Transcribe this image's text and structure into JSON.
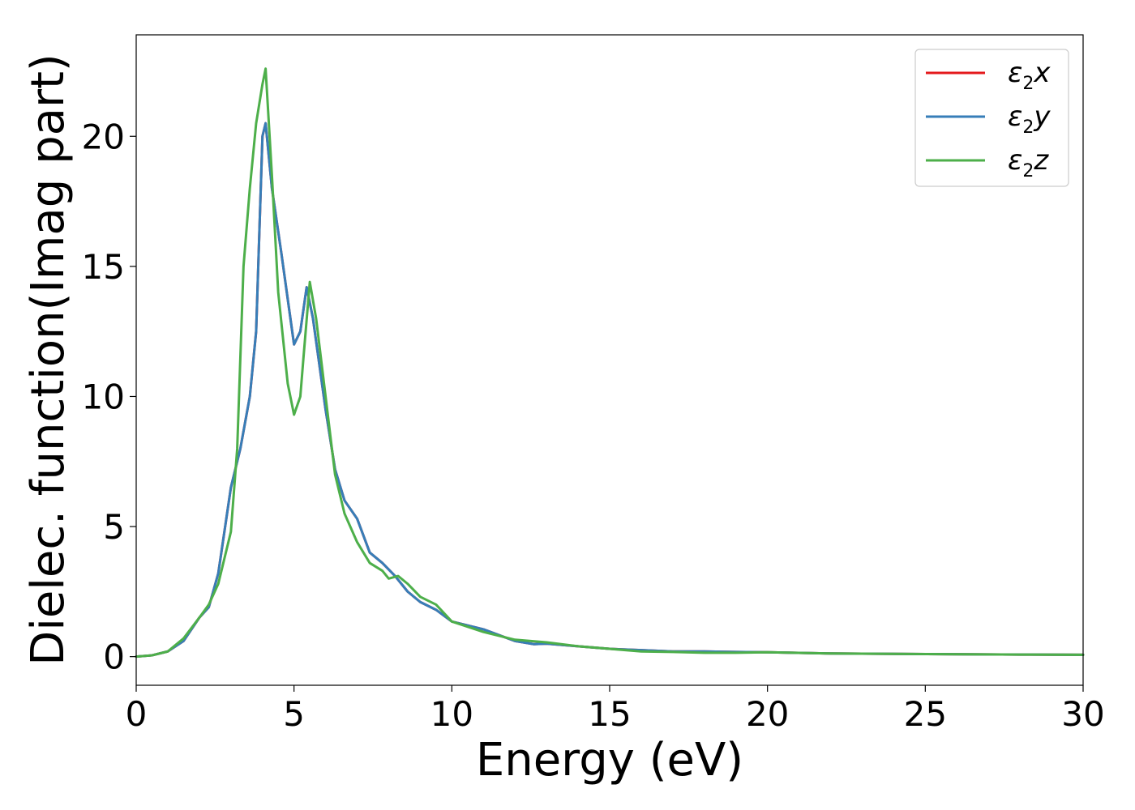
{
  "chart_data": {
    "type": "line",
    "xlabel": "Energy (eV)",
    "ylabel": "Dielec. function(Imag part)",
    "xlim": [
      0,
      30
    ],
    "ylim": [
      -1.1,
      23.9
    ],
    "xticks": [
      0,
      5,
      10,
      15,
      20,
      25,
      30
    ],
    "yticks": [
      0,
      5,
      10,
      15,
      20
    ],
    "xtick_labels": [
      "0",
      "5",
      "10",
      "15",
      "20",
      "25",
      "30"
    ],
    "ytick_labels": [
      "0",
      "5",
      "10",
      "15",
      "20"
    ],
    "grid": false,
    "legend_position": "top-right",
    "series": [
      {
        "name": "x",
        "legend_main": "ε",
        "legend_sub": "2",
        "legend_suffix": "x",
        "color": "#e41a1c",
        "points": [
          [
            0,
            0
          ],
          [
            0.5,
            0.05
          ],
          [
            1,
            0.2
          ],
          [
            1.5,
            0.6
          ],
          [
            2,
            1.5
          ],
          [
            2.3,
            1.9
          ],
          [
            2.6,
            3.2
          ],
          [
            3,
            6.5
          ],
          [
            3.3,
            8.0
          ],
          [
            3.6,
            10.0
          ],
          [
            3.8,
            12.5
          ],
          [
            4.0,
            20.0
          ],
          [
            4.1,
            20.5
          ],
          [
            4.3,
            18.0
          ],
          [
            4.6,
            15.5
          ],
          [
            5.0,
            12.0
          ],
          [
            5.2,
            12.5
          ],
          [
            5.4,
            14.2
          ],
          [
            5.6,
            13.0
          ],
          [
            6.0,
            9.5
          ],
          [
            6.3,
            7.2
          ],
          [
            6.6,
            6.0
          ],
          [
            7.0,
            5.3
          ],
          [
            7.4,
            4.0
          ],
          [
            7.8,
            3.6
          ],
          [
            8.2,
            3.1
          ],
          [
            8.6,
            2.5
          ],
          [
            9.0,
            2.1
          ],
          [
            9.5,
            1.8
          ],
          [
            10,
            1.35
          ],
          [
            11,
            1.05
          ],
          [
            12,
            0.6
          ],
          [
            12.6,
            0.48
          ],
          [
            13,
            0.5
          ],
          [
            14,
            0.4
          ],
          [
            15,
            0.3
          ],
          [
            16,
            0.25
          ],
          [
            17,
            0.2
          ],
          [
            18,
            0.2
          ],
          [
            19,
            0.18
          ],
          [
            20,
            0.17
          ],
          [
            22,
            0.12
          ],
          [
            25,
            0.1
          ],
          [
            28,
            0.08
          ],
          [
            30,
            0.07
          ]
        ]
      },
      {
        "name": "y",
        "legend_main": "ε",
        "legend_sub": "2",
        "legend_suffix": "y",
        "color": "#377eb8",
        "points": [
          [
            0,
            0
          ],
          [
            0.5,
            0.05
          ],
          [
            1,
            0.2
          ],
          [
            1.5,
            0.6
          ],
          [
            2,
            1.5
          ],
          [
            2.3,
            1.9
          ],
          [
            2.6,
            3.2
          ],
          [
            3,
            6.5
          ],
          [
            3.3,
            8.0
          ],
          [
            3.6,
            10.0
          ],
          [
            3.8,
            12.5
          ],
          [
            4.0,
            20.0
          ],
          [
            4.1,
            20.5
          ],
          [
            4.3,
            18.0
          ],
          [
            4.6,
            15.5
          ],
          [
            5.0,
            12.0
          ],
          [
            5.2,
            12.5
          ],
          [
            5.4,
            14.2
          ],
          [
            5.6,
            13.0
          ],
          [
            6.0,
            9.5
          ],
          [
            6.3,
            7.2
          ],
          [
            6.6,
            6.0
          ],
          [
            7.0,
            5.3
          ],
          [
            7.4,
            4.0
          ],
          [
            7.8,
            3.6
          ],
          [
            8.2,
            3.1
          ],
          [
            8.6,
            2.5
          ],
          [
            9.0,
            2.1
          ],
          [
            9.5,
            1.8
          ],
          [
            10,
            1.35
          ],
          [
            11,
            1.05
          ],
          [
            12,
            0.6
          ],
          [
            12.6,
            0.48
          ],
          [
            13,
            0.5
          ],
          [
            14,
            0.4
          ],
          [
            15,
            0.3
          ],
          [
            16,
            0.25
          ],
          [
            17,
            0.2
          ],
          [
            18,
            0.2
          ],
          [
            19,
            0.18
          ],
          [
            20,
            0.17
          ],
          [
            22,
            0.12
          ],
          [
            25,
            0.1
          ],
          [
            28,
            0.08
          ],
          [
            30,
            0.07
          ]
        ]
      },
      {
        "name": "z",
        "legend_main": "ε",
        "legend_sub": "2",
        "legend_suffix": "z",
        "color": "#4daf4a",
        "points": [
          [
            0,
            0
          ],
          [
            0.5,
            0.05
          ],
          [
            1,
            0.2
          ],
          [
            1.5,
            0.7
          ],
          [
            2,
            1.5
          ],
          [
            2.3,
            2.0
          ],
          [
            2.6,
            2.8
          ],
          [
            3,
            4.8
          ],
          [
            3.2,
            8.0
          ],
          [
            3.4,
            15.0
          ],
          [
            3.6,
            18.0
          ],
          [
            3.8,
            20.5
          ],
          [
            4.0,
            22.0
          ],
          [
            4.1,
            22.6
          ],
          [
            4.3,
            18.5
          ],
          [
            4.5,
            14.0
          ],
          [
            4.8,
            10.5
          ],
          [
            5.0,
            9.3
          ],
          [
            5.2,
            10.0
          ],
          [
            5.3,
            11.5
          ],
          [
            5.5,
            14.4
          ],
          [
            5.7,
            13.0
          ],
          [
            6.0,
            10.0
          ],
          [
            6.3,
            7.0
          ],
          [
            6.6,
            5.5
          ],
          [
            7.0,
            4.4
          ],
          [
            7.4,
            3.6
          ],
          [
            7.8,
            3.3
          ],
          [
            8.0,
            3.0
          ],
          [
            8.3,
            3.1
          ],
          [
            8.6,
            2.8
          ],
          [
            9.0,
            2.3
          ],
          [
            9.5,
            2.0
          ],
          [
            10,
            1.35
          ],
          [
            11,
            0.95
          ],
          [
            12,
            0.65
          ],
          [
            13,
            0.55
          ],
          [
            14,
            0.4
          ],
          [
            15,
            0.3
          ],
          [
            16,
            0.2
          ],
          [
            17,
            0.18
          ],
          [
            18,
            0.15
          ],
          [
            19,
            0.15
          ],
          [
            20,
            0.17
          ],
          [
            22,
            0.12
          ],
          [
            25,
            0.1
          ],
          [
            28,
            0.08
          ],
          [
            30,
            0.07
          ]
        ]
      }
    ]
  }
}
